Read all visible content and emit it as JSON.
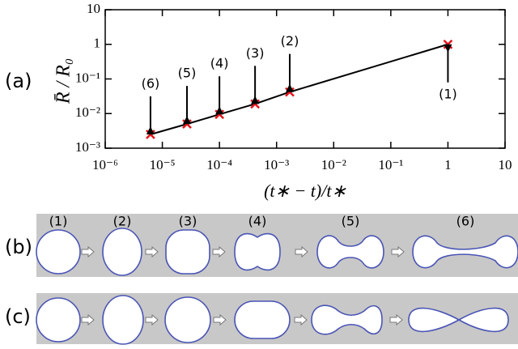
{
  "panel_labels": [
    "(a)",
    "(b)",
    "(c)"
  ],
  "chart_data": {
    "type": "line",
    "xlabel": "(t∗ − t)/t∗",
    "ylabel": "R̄ / R₀",
    "x": [
      6.2e-06,
      2.7e-05,
      0.0001,
      0.00042,
      0.0017,
      1
    ],
    "values": [
      0.0025,
      0.005,
      0.0095,
      0.019,
      0.042,
      1
    ],
    "point_labels": [
      "(6)",
      "(5)",
      "(4)",
      "(3)",
      "(2)",
      "(1)"
    ],
    "line_color": "#000000",
    "marker_color": "#e8141b",
    "xscale": "log",
    "yscale": "log",
    "xlim": [
      1e-06,
      10
    ],
    "ylim": [
      0.001,
      10
    ],
    "xticks": [
      {
        "value": 1e-06,
        "label": "10⁻⁶"
      },
      {
        "value": 1e-05,
        "label": "10⁻⁵"
      },
      {
        "value": 0.0001,
        "label": "10⁻⁴"
      },
      {
        "value": 0.001,
        "label": "10⁻³"
      },
      {
        "value": 0.01,
        "label": "10⁻²"
      },
      {
        "value": 0.1,
        "label": "10⁻¹"
      },
      1,
      10
    ],
    "yticks": [
      {
        "value": 0.001,
        "label": "10⁻³"
      },
      {
        "value": 0.01,
        "label": "10⁻²"
      },
      {
        "value": 0.1,
        "label": "10⁻¹"
      },
      1,
      10
    ]
  },
  "panel_b": {
    "stage_labels": [
      "(1)",
      "(2)",
      "(3)",
      "(4)",
      "(5)",
      "(6)"
    ]
  }
}
